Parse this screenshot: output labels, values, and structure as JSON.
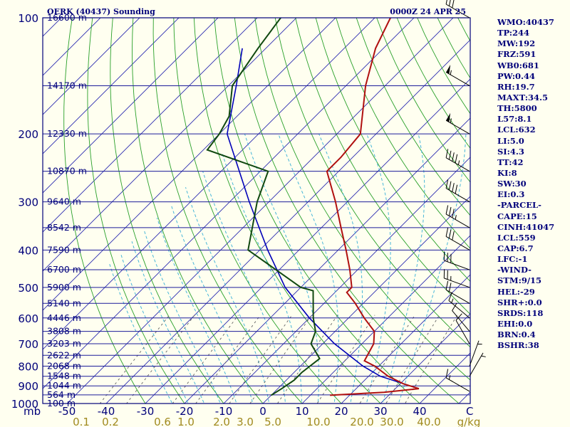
{
  "header": {
    "station": "OERK (40437) Sounding",
    "time": "0000Z 24 APR 25"
  },
  "stats": [
    "WMO:40437",
    "TP:244",
    "MW:192",
    "FRZ:591",
    "WB0:681",
    "PW:0.44",
    "RH:19.7",
    "MAXT:34.5",
    "TH:5800",
    "L57:8.1",
    "LCL:632",
    "LI:5.0",
    "SI:4.3",
    "TT:42",
    "KI:8",
    "SW:30",
    "EI:0.3",
    "-PARCEL-",
    "CAPE:15",
    "CINH:41047",
    "LCL:559",
    "CAP:6.7",
    "LFC:-1",
    "-WIND-",
    "STM:9/15",
    "HEL:-29",
    "SHR+:0.0",
    "SRDS:118",
    "EHI:0.0",
    "BRN:0.4",
    "BSHR:38"
  ],
  "colors": {
    "background": "#fffff0",
    "frame": "#00007a",
    "isobar": "#1c1c9a",
    "isotherm": "#2b2bb0",
    "dry_adiabat": "#2aa02a",
    "moist_adiabat": "#47b6d8",
    "mixing_ratio": "#606060",
    "temperature": "#b01010",
    "dewpoint": "#104810",
    "parcel": "#0000b8",
    "wind_barb": "#000000",
    "mixing_label": "#a08a20",
    "text": "#00007a"
  },
  "chart_data": {
    "type": "skew-t log-p",
    "title": "OERK (40437) Sounding",
    "time": "0000Z 24 APR 25",
    "xunit": "C",
    "yunit": "mb",
    "xlim": [
      -50,
      50
    ],
    "ylim": [
      1000,
      100
    ],
    "pressure_ticks": [
      {
        "p": 100,
        "label": "100"
      },
      {
        "p": 200,
        "label": "200"
      },
      {
        "p": 300,
        "label": "300"
      },
      {
        "p": 400,
        "label": "400"
      },
      {
        "p": 500,
        "label": "500"
      },
      {
        "p": 600,
        "label": "600"
      },
      {
        "p": 700,
        "label": "700"
      },
      {
        "p": 800,
        "label": "800"
      },
      {
        "p": 900,
        "label": "900"
      },
      {
        "p": 1000,
        "label": "1000"
      }
    ],
    "temperature_ticks": [
      {
        "t": -50,
        "label": "-50"
      },
      {
        "t": -40,
        "label": "-40"
      },
      {
        "t": -30,
        "label": "-30"
      },
      {
        "t": -20,
        "label": "-20"
      },
      {
        "t": -10,
        "label": "-10"
      },
      {
        "t": 0,
        "label": "0"
      },
      {
        "t": 10,
        "label": "10"
      },
      {
        "t": 20,
        "label": "20"
      },
      {
        "t": 30,
        "label": "30"
      },
      {
        "t": 40,
        "label": "40"
      }
    ],
    "axis_unit_label": "mb",
    "temperature_unit_label": "C",
    "height_levels": [
      {
        "p": 100,
        "label": "16600 m"
      },
      {
        "p": 150,
        "label": "14170 m"
      },
      {
        "p": 200,
        "label": "12330 m"
      },
      {
        "p": 250,
        "label": "10870 m"
      },
      {
        "p": 300,
        "label": "9640 m"
      },
      {
        "p": 350,
        "label": "8542 m"
      },
      {
        "p": 400,
        "label": "7590 m"
      },
      {
        "p": 450,
        "label": "6700 m"
      },
      {
        "p": 500,
        "label": "5900 m"
      },
      {
        "p": 550,
        "label": "5140 m"
      },
      {
        "p": 600,
        "label": "4446 m"
      },
      {
        "p": 650,
        "label": "3808 m"
      },
      {
        "p": 700,
        "label": "3203 m"
      },
      {
        "p": 750,
        "label": "2622 m"
      },
      {
        "p": 800,
        "label": "2068 m"
      },
      {
        "p": 850,
        "label": "1548 m"
      },
      {
        "p": 900,
        "label": "1044 m"
      },
      {
        "p": 950,
        "label": "564 m"
      },
      {
        "p": 1000,
        "label": "100 m"
      }
    ],
    "mixing_ratio_labels": [
      "0.1",
      "0.2",
      "0.6",
      "1.0",
      "2.0",
      "3.0",
      "5.0",
      "10.0",
      "20.0",
      "30.0",
      "40.0",
      "g/kg"
    ],
    "mixing_ratios": [
      0.1,
      0.2,
      0.6,
      1.0,
      2.0,
      3.0,
      5.0,
      10.0,
      20.0,
      30.0,
      40.0
    ],
    "temperature_profile": [
      {
        "p": 952,
        "t": 15.0
      },
      {
        "p": 935,
        "t": 28.0
      },
      {
        "p": 915,
        "t": 36.0
      },
      {
        "p": 890,
        "t": 31.0
      },
      {
        "p": 850,
        "t": 25.0
      },
      {
        "p": 800,
        "t": 19.0
      },
      {
        "p": 775,
        "t": 15.0
      },
      {
        "p": 700,
        "t": 13.0
      },
      {
        "p": 650,
        "t": 10.0
      },
      {
        "p": 600,
        "t": 4.0
      },
      {
        "p": 550,
        "t": -2.0
      },
      {
        "p": 515,
        "t": -7.0
      },
      {
        "p": 500,
        "t": -7.0
      },
      {
        "p": 450,
        "t": -12.0
      },
      {
        "p": 400,
        "t": -18.0
      },
      {
        "p": 350,
        "t": -25.0
      },
      {
        "p": 300,
        "t": -33.0
      },
      {
        "p": 250,
        "t": -43.0
      },
      {
        "p": 230,
        "t": -43.0
      },
      {
        "p": 200,
        "t": -44.0
      },
      {
        "p": 150,
        "t": -55.0
      },
      {
        "p": 120,
        "t": -62.0
      },
      {
        "p": 100,
        "t": -66.0
      }
    ],
    "dewpoint_profile": [
      {
        "p": 952,
        "t": 0.0
      },
      {
        "p": 915,
        "t": 1.0
      },
      {
        "p": 870,
        "t": 2.0
      },
      {
        "p": 830,
        "t": 2.0
      },
      {
        "p": 765,
        "t": 3.0
      },
      {
        "p": 700,
        "t": -3.0
      },
      {
        "p": 650,
        "t": -5.0
      },
      {
        "p": 600,
        "t": -9.0
      },
      {
        "p": 510,
        "t": -16.0
      },
      {
        "p": 500,
        "t": -20.0
      },
      {
        "p": 400,
        "t": -43.0
      },
      {
        "p": 300,
        "t": -53.0
      },
      {
        "p": 250,
        "t": -58.0
      },
      {
        "p": 220,
        "t": -79.0
      },
      {
        "p": 200,
        "t": -80.0
      },
      {
        "p": 180,
        "t": -82.0
      },
      {
        "p": 150,
        "t": -89.0
      },
      {
        "p": 120,
        "t": -92.0
      },
      {
        "p": 100,
        "t": -94.0
      }
    ],
    "parcel_profile": [
      {
        "p": 915,
        "t": 36.0
      },
      {
        "p": 850,
        "t": 23.0
      },
      {
        "p": 800,
        "t": 16.0
      },
      {
        "p": 700,
        "t": 3.0
      },
      {
        "p": 600,
        "t": -10.0
      },
      {
        "p": 500,
        "t": -24.0
      },
      {
        "p": 400,
        "t": -38.0
      },
      {
        "p": 300,
        "t": -55.0
      },
      {
        "p": 200,
        "t": -78.0
      },
      {
        "p": 150,
        "t": -88.0
      },
      {
        "p": 120,
        "t": -96.0
      }
    ],
    "wind_profile": [
      {
        "p": 930,
        "dir": 300,
        "spd": 15
      },
      {
        "p": 850,
        "dir": 30,
        "spd": 5
      },
      {
        "p": 800,
        "dir": 20,
        "spd": 5
      },
      {
        "p": 700,
        "dir": 330,
        "spd": 10
      },
      {
        "p": 650,
        "dir": 320,
        "spd": 10
      },
      {
        "p": 600,
        "dir": 310,
        "spd": 15
      },
      {
        "p": 550,
        "dir": 300,
        "spd": 20
      },
      {
        "p": 500,
        "dir": 290,
        "spd": 25
      },
      {
        "p": 450,
        "dir": 290,
        "spd": 30
      },
      {
        "p": 400,
        "dir": 300,
        "spd": 30
      },
      {
        "p": 350,
        "dir": 300,
        "spd": 35
      },
      {
        "p": 300,
        "dir": 300,
        "spd": 40
      },
      {
        "p": 250,
        "dir": 300,
        "spd": 45
      },
      {
        "p": 200,
        "dir": 300,
        "spd": 55
      },
      {
        "p": 150,
        "dir": 300,
        "spd": 55
      },
      {
        "p": 100,
        "dir": 300,
        "spd": 30
      }
    ],
    "grid": true
  }
}
